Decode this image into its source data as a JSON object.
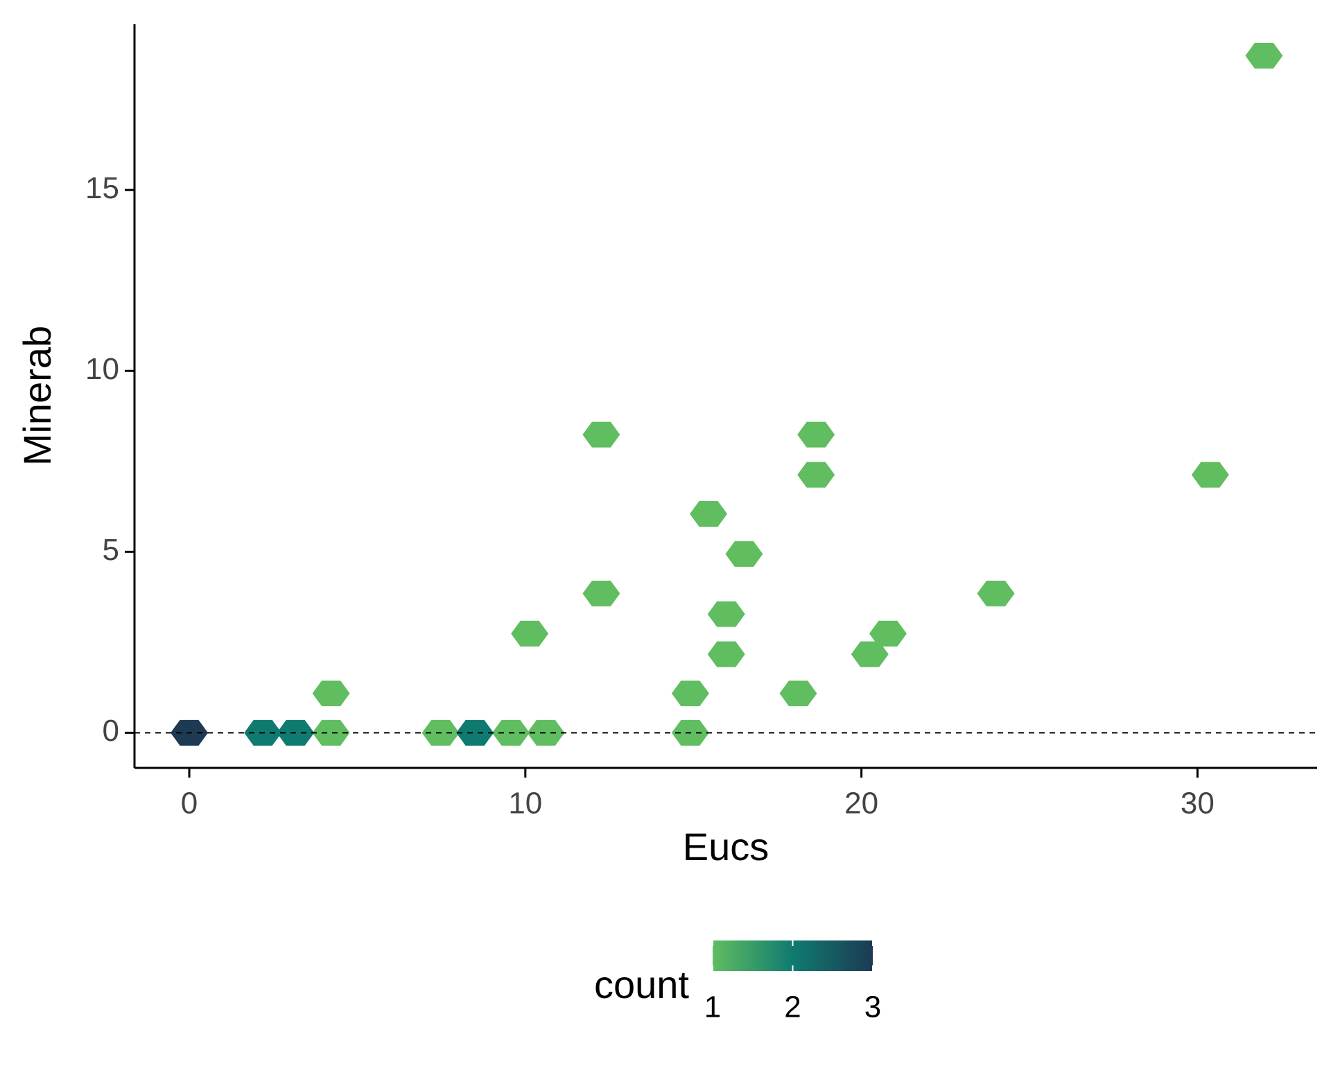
{
  "chart_data": {
    "type": "hexbin",
    "x_label": "Eucs",
    "y_label": "Minerab",
    "x": [
      0,
      2.19,
      3.16,
      4.22,
      4.22,
      7.48,
      8.5,
      9.57,
      10.61,
      10.13,
      12.26,
      12.26,
      14.91,
      14.91,
      15.45,
      15.98,
      15.98,
      16.51,
      18.12,
      18.65,
      18.65,
      20.25,
      20.79,
      24.0,
      30.38,
      31.98
    ],
    "y": [
      0,
      0,
      0,
      0,
      1.09,
      0,
      0,
      0,
      0,
      2.74,
      8.24,
      3.85,
      0,
      1.09,
      6.05,
      3.28,
      2.17,
      4.94,
      1.09,
      8.24,
      7.13,
      2.17,
      2.74,
      3.85,
      7.13,
      18.71
    ],
    "counts": [
      3,
      2,
      2,
      1,
      1,
      1,
      2,
      1,
      1,
      1,
      1,
      1,
      1,
      1,
      1,
      1,
      1,
      1,
      1,
      1,
      1,
      1,
      1,
      1,
      1,
      1
    ],
    "xlim": [
      -1.63,
      33.56
    ],
    "ylim": [
      -0.97,
      19.58
    ],
    "xticks": [
      0,
      10,
      20,
      30
    ],
    "yticks": [
      0,
      5,
      10,
      15
    ],
    "hline": 0,
    "color_stops": [
      {
        "value": 1,
        "color": "#60bd60"
      },
      {
        "value": 2,
        "color": "#0f7b70"
      },
      {
        "value": 3,
        "color": "#1d3a52"
      }
    ],
    "legend": {
      "title": "count",
      "ticks": [
        1,
        2,
        3
      ],
      "position": "bottom"
    }
  }
}
